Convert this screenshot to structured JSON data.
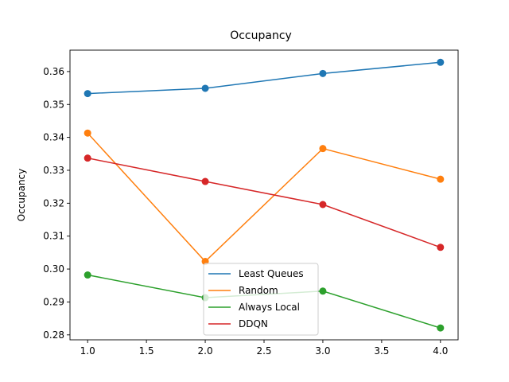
{
  "chart_data": {
    "type": "line",
    "title": "Occupancy",
    "xlabel": "",
    "ylabel": "Occupancy",
    "x": [
      1.0,
      2.0,
      3.0,
      4.0
    ],
    "xlim": [
      0.85,
      4.15
    ],
    "ylim": [
      0.2785,
      0.3665
    ],
    "xticks": [
      1.0,
      1.5,
      2.0,
      2.5,
      3.0,
      3.5,
      4.0
    ],
    "xtick_labels": [
      "1.0",
      "1.5",
      "2.0",
      "2.5",
      "3.0",
      "3.5",
      "4.0"
    ],
    "yticks": [
      0.28,
      0.29,
      0.3,
      0.31,
      0.32,
      0.33,
      0.34,
      0.35,
      0.36
    ],
    "ytick_labels": [
      "0.28",
      "0.29",
      "0.30",
      "0.31",
      "0.32",
      "0.33",
      "0.34",
      "0.35",
      "0.36"
    ],
    "grid": false,
    "legend_position": "lower-center",
    "series": [
      {
        "name": "Least Queues",
        "color": "#1f77b4",
        "values": [
          0.3533,
          0.3549,
          0.3594,
          0.3628
        ]
      },
      {
        "name": "Random",
        "color": "#ff7f0e",
        "values": [
          0.3413,
          0.3023,
          0.3366,
          0.3273
        ]
      },
      {
        "name": "Always Local",
        "color": "#2ca02c",
        "values": [
          0.2982,
          0.2913,
          0.2933,
          0.2821
        ]
      },
      {
        "name": "DDQN",
        "color": "#d62728",
        "values": [
          0.3337,
          0.3266,
          0.3196,
          0.3066
        ]
      }
    ]
  }
}
